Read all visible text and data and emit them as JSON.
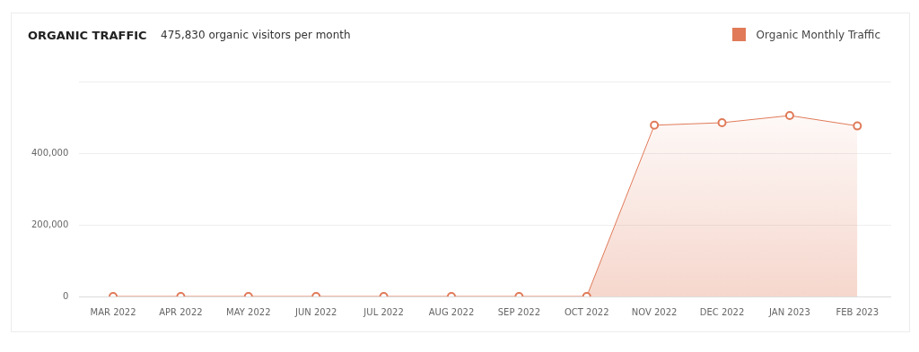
{
  "chart_data": {
    "type": "area",
    "title": "ORGANIC TRAFFIC",
    "subtitle": "475,830 organic visitors per month",
    "categories": [
      "MAR 2022",
      "APR 2022",
      "MAY 2022",
      "JUN 2022",
      "JUL 2022",
      "AUG 2022",
      "SEP 2022",
      "OCT 2022",
      "NOV 2022",
      "DEC 2022",
      "JAN 2023",
      "FEB 2023"
    ],
    "series": [
      {
        "name": "Organic Monthly Traffic",
        "color": "#e07a58",
        "values": [
          0,
          0,
          0,
          0,
          0,
          0,
          0,
          0,
          478000,
          485000,
          505000,
          476000
        ]
      }
    ],
    "ylim": [
      0,
      600000
    ],
    "yticks": [
      0,
      {
        "value": 200000,
        "label": "200,000"
      },
      {
        "value": 400000,
        "label": "400,000"
      },
      {
        "value": 600000,
        "label": null
      }
    ],
    "grid": "y",
    "legend": "top right",
    "marker": "circle"
  }
}
